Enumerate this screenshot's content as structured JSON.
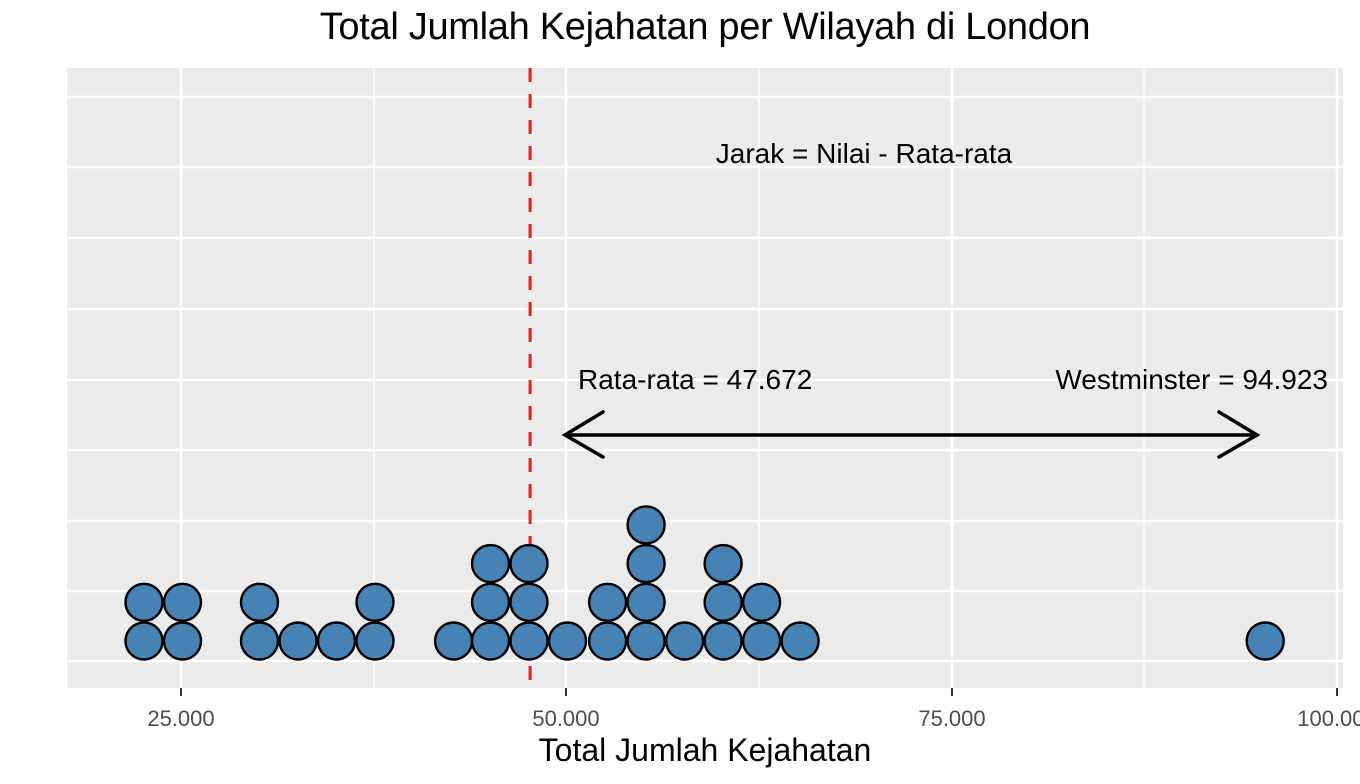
{
  "chart": {
    "title": "Total Jumlah Kejahatan per Wilayah di London",
    "xlabel": "Total Jumlah Kejahatan",
    "annotations": {
      "formula": "Jarak = Nilai - Rata-rata",
      "mean_label": "Rata-rata = 47.672",
      "westminster_label": "Westminster = 94.923"
    },
    "x_ticks": [
      "25.000",
      "50.000",
      "75.000",
      "100.000"
    ]
  },
  "colors": {
    "panel_bg": "#ebebeb",
    "grid": "#ffffff",
    "dot_fill": "#4682b4",
    "dot_stroke": "#000000",
    "mean_line": "#e0231c",
    "arrow": "#000000"
  },
  "chart_data": {
    "type": "dotplot",
    "title": "Total Jumlah Kejahatan per Wilayah di London",
    "xlabel": "Total Jumlah Kejahatan",
    "ylabel": "",
    "xlim": [
      17500,
      100200
    ],
    "x_ticks": [
      25000,
      50000,
      75000,
      100000
    ],
    "x_tick_labels": [
      "25.000",
      "50.000",
      "75.000",
      "100.000"
    ],
    "grid": true,
    "legend": null,
    "bins": [
      {
        "x": 22600,
        "count": 2
      },
      {
        "x": 25100,
        "count": 2
      },
      {
        "x": 30100,
        "count": 2
      },
      {
        "x": 32600,
        "count": 1
      },
      {
        "x": 35100,
        "count": 1
      },
      {
        "x": 37600,
        "count": 2
      },
      {
        "x": 42700,
        "count": 1
      },
      {
        "x": 45100,
        "count": 3
      },
      {
        "x": 47600,
        "count": 3
      },
      {
        "x": 50100,
        "count": 1
      },
      {
        "x": 52700,
        "count": 2
      },
      {
        "x": 55200,
        "count": 4
      },
      {
        "x": 57700,
        "count": 1
      },
      {
        "x": 60200,
        "count": 3
      },
      {
        "x": 62700,
        "count": 2
      },
      {
        "x": 65200,
        "count": 1
      },
      {
        "x": 95400,
        "count": 1
      }
    ],
    "total_points": 32,
    "mean": 47672,
    "mean_line": {
      "x": 47672,
      "style": "dashed",
      "color": "#e0231c"
    },
    "highlight": {
      "label": "Westminster",
      "value": 94923
    },
    "annotations": [
      {
        "text": "Jarak = Nilai - Rata-rata",
        "x": 72500,
        "y_pos": "top"
      },
      {
        "text": "Rata-rata = 47.672",
        "x": 50500
      },
      {
        "text": "Westminster = 94.923",
        "x": 94900
      },
      {
        "type": "double-arrow",
        "from": 50000,
        "to": 95000
      }
    ]
  }
}
